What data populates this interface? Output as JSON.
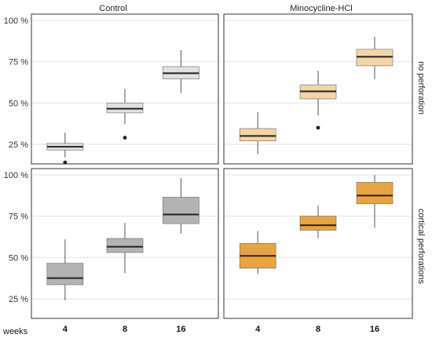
{
  "chart_data": {
    "type": "box",
    "column_headers": [
      "Control",
      "Minocycline-HCl"
    ],
    "row_headers": [
      "no perforation",
      "cortical perforations"
    ],
    "x_axis_title": "weeks",
    "x_categories": [
      "4",
      "8",
      "16"
    ],
    "y_ticks": [
      "25 %",
      "50 %",
      "75 %",
      "100 %"
    ],
    "ylim": [
      15,
      100
    ],
    "grid": true,
    "panels": [
      {
        "column": "Control",
        "row": "no perforation",
        "fill": "#e0e0e0",
        "boxes": [
          {
            "x": "4",
            "whisker_low": 17,
            "q1": 21.5,
            "median": 23.5,
            "q3": 25.5,
            "whisker_high": 32,
            "outliers": [
              14
            ]
          },
          {
            "x": "8",
            "whisker_low": 37,
            "q1": 44,
            "median": 46.5,
            "q3": 50,
            "whisker_high": 58.5,
            "outliers": [
              29
            ]
          },
          {
            "x": "16",
            "whisker_low": 56,
            "q1": 64.5,
            "median": 68,
            "q3": 72,
            "whisker_high": 82,
            "outliers": []
          }
        ]
      },
      {
        "column": "Minocycline-HCl",
        "row": "no perforation",
        "fill": "#f3d5a6",
        "boxes": [
          {
            "x": "4",
            "whisker_low": 19,
            "q1": 27,
            "median": 30,
            "q3": 34.5,
            "whisker_high": 44.5,
            "outliers": []
          },
          {
            "x": "8",
            "whisker_low": 42.5,
            "q1": 52.5,
            "median": 57,
            "q3": 61,
            "whisker_high": 69.5,
            "outliers": [
              35
            ]
          },
          {
            "x": "16",
            "whisker_low": 64.5,
            "q1": 72.5,
            "median": 78,
            "q3": 82.5,
            "whisker_high": 90,
            "outliers": []
          }
        ]
      },
      {
        "column": "Control",
        "row": "cortical perforations",
        "fill": "#b3b3b3",
        "boxes": [
          {
            "x": "4",
            "whisker_low": 24,
            "q1": 33.5,
            "median": 37.5,
            "q3": 46.5,
            "whisker_high": 61,
            "outliers": []
          },
          {
            "x": "8",
            "whisker_low": 40.5,
            "q1": 53,
            "median": 56.5,
            "q3": 61.5,
            "whisker_high": 71,
            "outliers": []
          },
          {
            "x": "16",
            "whisker_low": 64.5,
            "q1": 70.5,
            "median": 76,
            "q3": 86.5,
            "whisker_high": 98,
            "outliers": []
          }
        ]
      },
      {
        "column": "Minocycline-HCl",
        "row": "cortical perforations",
        "fill": "#e8a43e",
        "boxes": [
          {
            "x": "4",
            "whisker_low": 40,
            "q1": 43.5,
            "median": 51,
            "q3": 58.5,
            "whisker_high": 66,
            "outliers": []
          },
          {
            "x": "8",
            "whisker_low": 61.5,
            "q1": 66.5,
            "median": 69.5,
            "q3": 75,
            "whisker_high": 81.5,
            "outliers": []
          },
          {
            "x": "16",
            "whisker_low": 68,
            "q1": 82.5,
            "median": 87.5,
            "q3": 95.5,
            "whisker_high": 100,
            "outliers": []
          }
        ]
      }
    ]
  }
}
